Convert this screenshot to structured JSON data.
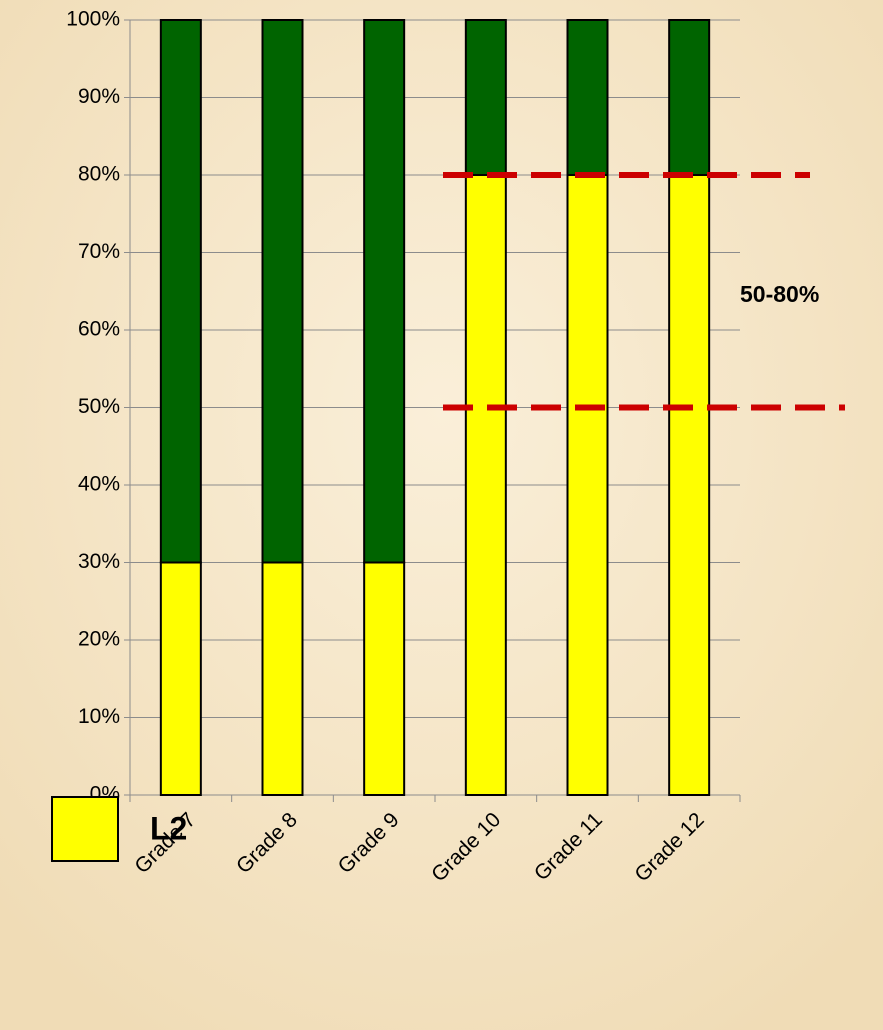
{
  "chart_data": {
    "type": "stacked_bar",
    "categories": [
      "Grade 7",
      "Grade 8",
      "Grade 9",
      "Grade 10",
      "Grade 11",
      "Grade 12"
    ],
    "series": [
      {
        "name": "L2",
        "color": "#ffff00",
        "values": [
          30,
          30,
          30,
          80,
          80,
          80
        ]
      },
      {
        "color": "#006400",
        "values": [
          70,
          70,
          70,
          20,
          20,
          20
        ]
      }
    ],
    "ylim": [
      0,
      100
    ],
    "yticks": [
      {
        "value": 0,
        "label": "0%"
      },
      {
        "value": 10,
        "label": "10%"
      },
      {
        "value": 20,
        "label": "20%"
      },
      {
        "value": 30,
        "label": "30%"
      },
      {
        "value": 40,
        "label": "40%"
      },
      {
        "value": 50,
        "label": "50%"
      },
      {
        "value": 60,
        "label": "60%"
      },
      {
        "value": 70,
        "label": "70%"
      },
      {
        "value": 80,
        "label": "80%"
      },
      {
        "value": 90,
        "label": "90%"
      },
      {
        "value": 100,
        "label": "100%"
      }
    ],
    "grid": true,
    "reference_lines": [
      {
        "value": 80,
        "color": "#cc0000"
      },
      {
        "value": 50,
        "color": "#cc0000"
      }
    ],
    "annotation": "50-80%",
    "legend": "bottom-left"
  }
}
